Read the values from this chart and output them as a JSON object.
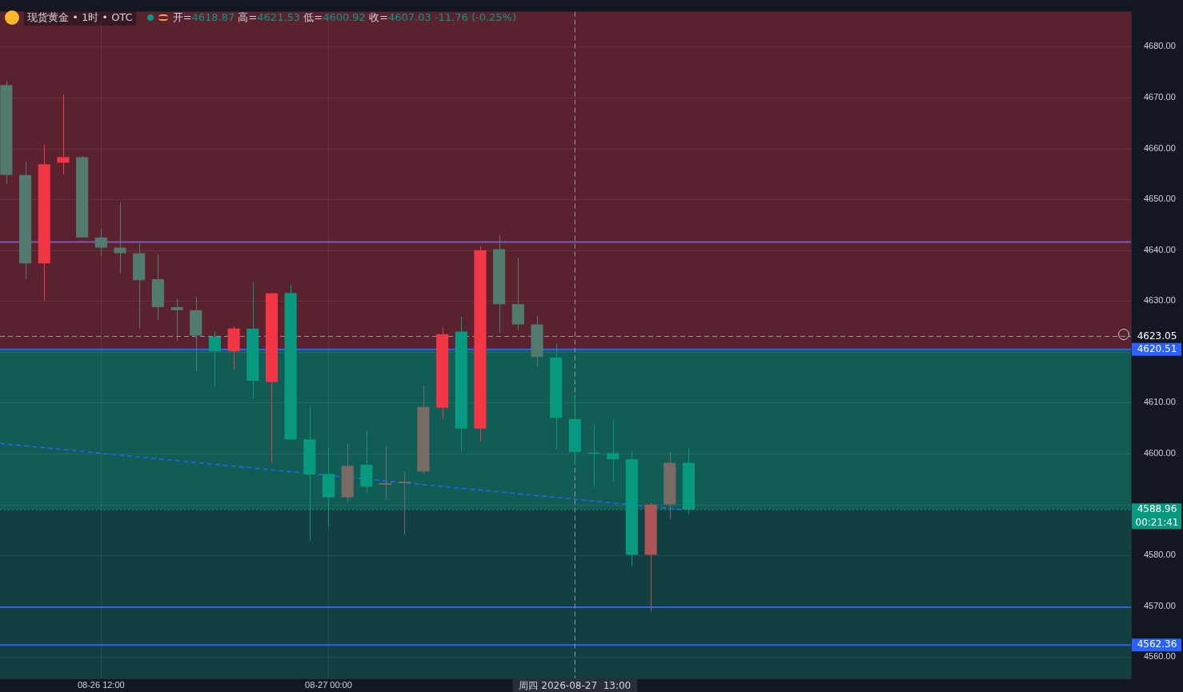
{
  "chart_data": {
    "type": "candlestick",
    "title": "现货黄金 • 1时 • OTC",
    "subtitle": "开=4618.87 高=4621.53 低=4600.92 收=4607.03 -11.76 (-0.25%)",
    "x": [
      "2026-08-26T07:00",
      "2026-08-26T08:00",
      "2026-08-26T09:00",
      "2026-08-26T10:00",
      "2026-08-26T11:00",
      "2026-08-26T12:00",
      "2026-08-26T13:00",
      "2026-08-26T14:00",
      "2026-08-26T15:00",
      "2026-08-26T16:00",
      "2026-08-26T17:00",
      "2026-08-26T18:00",
      "2026-08-26T19:00",
      "2026-08-26T20:00",
      "2026-08-26T21:00",
      "2026-08-26T22:00",
      "2026-08-26T23:00",
      "2026-08-27T00:00",
      "2026-08-27T01:00",
      "2026-08-27T02:00",
      "2026-08-27T03:00",
      "2026-08-27T04:00",
      "2026-08-27T05:00",
      "2026-08-27T06:00",
      "2026-08-27T07:00",
      "2026-08-27T08:00",
      "2026-08-27T09:00",
      "2026-08-27T10:00",
      "2026-08-27T11:00",
      "2026-08-27T12:00",
      "2026-08-27T13:00",
      "2026-08-27T14:00",
      "2026-08-27T15:00",
      "2026-08-27T16:00",
      "2026-08-27T17:00",
      "2026-08-27T18:00",
      "2026-08-27T19:00"
    ],
    "ohlc": [
      [
        4672.5,
        4673.3,
        4653.0,
        4654.8
      ],
      [
        4654.8,
        4657.4,
        4634.3,
        4637.4
      ],
      [
        4637.4,
        4660.8,
        4630.1,
        4656.9
      ],
      [
        4657.2,
        4670.6,
        4654.9,
        4658.3
      ],
      [
        4658.3,
        4658.6,
        4642.5,
        4642.5
      ],
      [
        4642.5,
        4644.3,
        4638.8,
        4640.5
      ],
      [
        4640.5,
        4649.4,
        4635.4,
        4639.4
      ],
      [
        4639.4,
        4641.3,
        4624.6,
        4634.1
      ],
      [
        4634.3,
        4639.1,
        4626.3,
        4628.8
      ],
      [
        4628.8,
        4630.5,
        4622.1,
        4628.2
      ],
      [
        4628.2,
        4630.8,
        4616.2,
        4623.2
      ],
      [
        4623.0,
        4624.0,
        4613.2,
        4620.1
      ],
      [
        4620.1,
        4625.1,
        4616.5,
        4624.6
      ],
      [
        4624.6,
        4633.7,
        4610.7,
        4614.3
      ],
      [
        4614.1,
        4631.6,
        4598.1,
        4631.5
      ],
      [
        4631.6,
        4633.3,
        4602.8,
        4602.8
      ],
      [
        4602.8,
        4609.2,
        4582.9,
        4595.9
      ],
      [
        4596.0,
        4601.3,
        4585.6,
        4591.4
      ],
      [
        4591.4,
        4602.0,
        4590.6,
        4597.6
      ],
      [
        4597.8,
        4604.5,
        4592.3,
        4593.5
      ],
      [
        4593.9,
        4601.5,
        4590.9,
        4594.2
      ],
      [
        4594.2,
        4596.5,
        4584.0,
        4594.5
      ],
      [
        4596.5,
        4613.4,
        4596.0,
        4609.2
      ],
      [
        4609.0,
        4624.8,
        4606.8,
        4623.5
      ],
      [
        4624.0,
        4626.9,
        4600.4,
        4604.9
      ],
      [
        4604.9,
        4640.7,
        4602.4,
        4640.0
      ],
      [
        4640.2,
        4642.9,
        4623.7,
        4629.4
      ],
      [
        4629.4,
        4638.5,
        4624.3,
        4625.4
      ],
      [
        4625.4,
        4627.1,
        4617.1,
        4619.0
      ],
      [
        4618.87,
        4621.53,
        4600.92,
        4607.03
      ],
      [
        4606.8,
        4611.6,
        4597.9,
        4600.3
      ],
      [
        4600.2,
        4605.7,
        4593.4,
        4600.0
      ],
      [
        4600.1,
        4606.7,
        4594.5,
        4598.9
      ],
      [
        4598.9,
        4600.4,
        4577.9,
        4580.1
      ],
      [
        4580.1,
        4590.4,
        4568.9,
        4590.0
      ],
      [
        4590.0,
        4600.3,
        4587.1,
        4598.2
      ],
      [
        4598.2,
        4601.0,
        4588.1,
        4589.0
      ]
    ],
    "colors": [
      "#527a6e",
      "#527a6e",
      "#f23645",
      "#f23645",
      "#527a6e",
      "#527a6e",
      "#527a6e",
      "#527a6e",
      "#527a6e",
      "#527a6e",
      "#527a6e",
      "#089981",
      "#f23645",
      "#089981",
      "#f23645",
      "#089981",
      "#089981",
      "#089981",
      "#7a6a66",
      "#089981",
      "#7a6a66",
      "#7a6a66",
      "#7a6a66",
      "#f23645",
      "#089981",
      "#f23645",
      "#527a6e",
      "#527a6e",
      "#527a6e",
      "#089981",
      "#089981",
      "#089981",
      "#089981",
      "#089981",
      "#ab5558",
      "#7a6a66",
      "#089981"
    ],
    "series": [
      {
        "type": "line",
        "x": [
          "2026-08-26T06:40",
          "2026-08-27T18:35"
        ],
        "values": [
          4602.0,
          4589.0
        ],
        "color": "#2962ff",
        "line_style": "dashed",
        "marker": "none"
      }
    ],
    "xlim": [
      "2026-08-26T06:40",
      "2026-08-28T18:20"
    ],
    "xticks": [
      {
        "value": "2026-08-26T12:00",
        "label": "08-26 12:00"
      },
      {
        "value": "2026-08-27T00:00",
        "label": "08-27 00:00"
      }
    ],
    "ylim": [
      4555.8,
      4686.9
    ],
    "yticks": [
      {
        "value": 4560,
        "label": "4560.00"
      },
      {
        "value": 4570,
        "label": "4570.00"
      },
      {
        "value": 4580,
        "label": "4580.00"
      },
      {
        "value": 4590,
        "label": null
      },
      {
        "value": 4600,
        "label": "4600.00"
      },
      {
        "value": 4610,
        "label": "4610.00"
      },
      {
        "value": 4620,
        "label": null
      },
      {
        "value": 4630,
        "label": "4630.00"
      },
      {
        "value": 4640,
        "label": "4640.00"
      },
      {
        "value": 4650,
        "label": "4650.00"
      },
      {
        "value": 4660,
        "label": "4660.00"
      },
      {
        "value": 4670,
        "label": "4670.00"
      },
      {
        "value": 4680,
        "label": "4680.00"
      }
    ],
    "grid": true,
    "legend": false,
    "bands": [
      {
        "axis": "y",
        "from": 4620.51,
        "to": 4686.9,
        "color": "#5a222f"
      },
      {
        "axis": "y",
        "from": 4588.96,
        "to": 4620.51,
        "color": "#115c55"
      },
      {
        "axis": "y",
        "from": 4555.8,
        "to": 4588.96,
        "color": "#123f42"
      }
    ],
    "ref_lines": [
      {
        "axis": "y",
        "value": 4641.6,
        "color": "#7e57c2",
        "line_style": "solid"
      },
      {
        "axis": "y",
        "value": 4623.05,
        "label": "4623.05",
        "color": "#9598a1",
        "line_style": "dashed"
      },
      {
        "axis": "y",
        "value": 4620.51,
        "label": "4620.51",
        "color": "#2962ff",
        "line_style": "solid"
      },
      {
        "axis": "y",
        "value": 4588.96,
        "label": "4588.96\n00:21:41",
        "color": "#089981",
        "line_style": "dotted"
      },
      {
        "axis": "y",
        "value": 4569.8,
        "color": "#2962ff",
        "line_style": "solid"
      },
      {
        "axis": "y",
        "value": 4562.36,
        "label": "4562.36",
        "color": "#2962ff",
        "line_style": "solid"
      },
      {
        "axis": "x",
        "value": "2026-08-27T13:00",
        "label": "周四 2026-08-27  13:00",
        "color": "#9598a1",
        "line_style": "dashed"
      }
    ]
  }
}
